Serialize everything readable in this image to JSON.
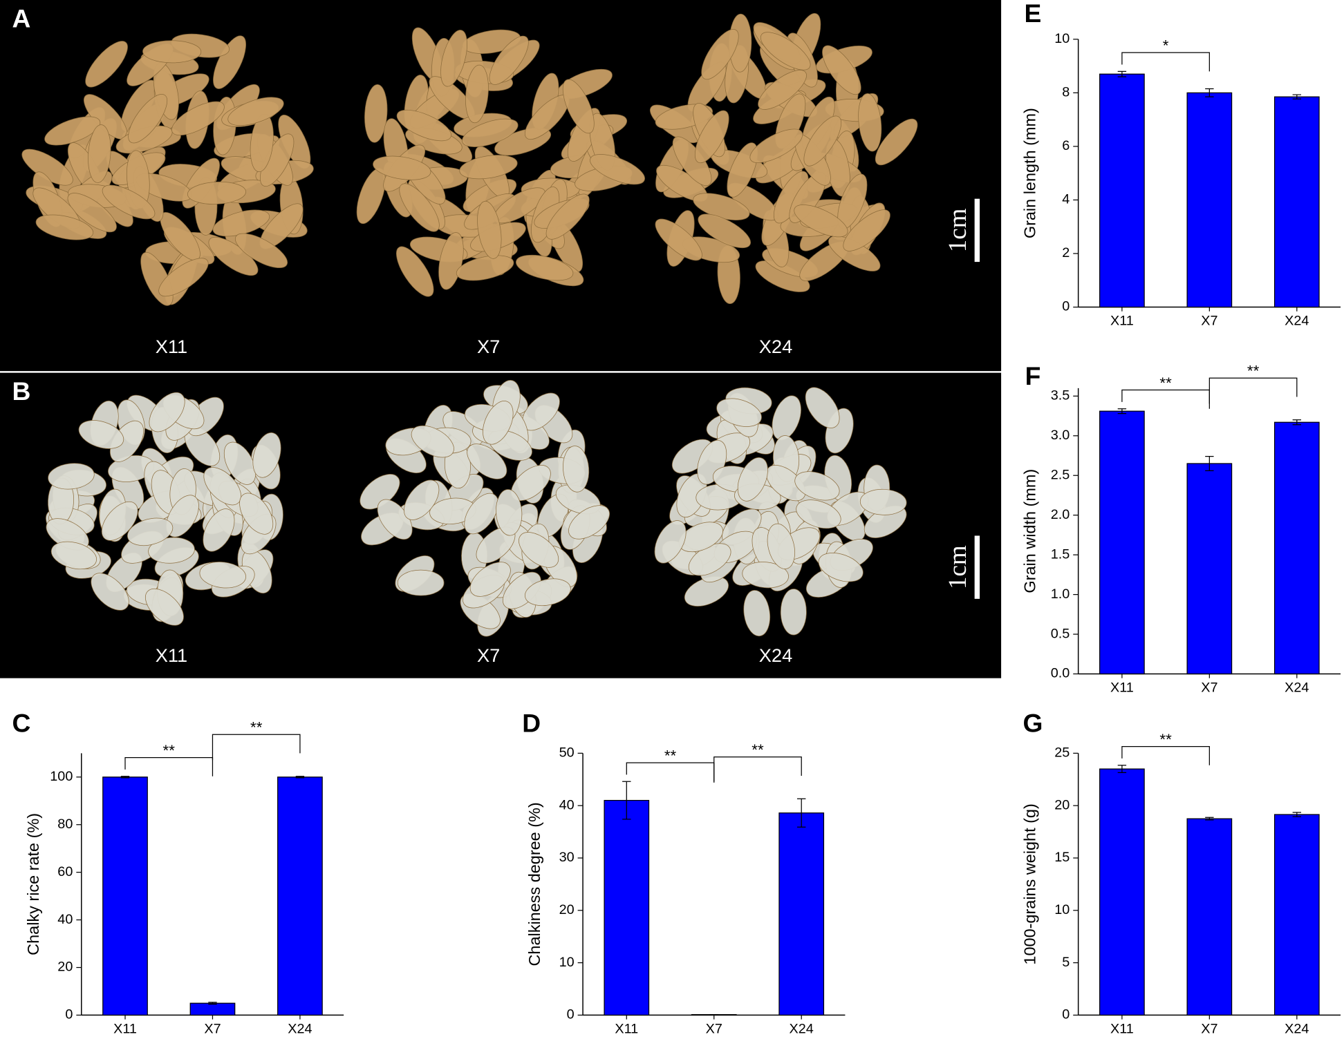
{
  "photos": [
    {
      "panel": "A",
      "samples": [
        "X11",
        "X7",
        "X24"
      ],
      "scale_bar": "1cm"
    },
    {
      "panel": "B",
      "samples": [
        "X11",
        "X7",
        "X24"
      ],
      "scale_bar": "1cm"
    }
  ],
  "chart_data": [
    {
      "type": "bar",
      "panel": "C",
      "y_label": "Chalky rice rate (%)",
      "categories": [
        "X11",
        "X7",
        "X24"
      ],
      "values": [
        100,
        5,
        100
      ],
      "errors": [
        0.3,
        0.4,
        0.3
      ],
      "color": "#0000ff",
      "ylim": [
        0,
        110
      ],
      "yticks": [
        0,
        20,
        40,
        60,
        80,
        100
      ],
      "annotations": [
        {
          "between": [
            "X11",
            "X7"
          ],
          "label": "**"
        },
        {
          "between": [
            "X7",
            "X24"
          ],
          "label": "**"
        }
      ]
    },
    {
      "type": "bar",
      "panel": "D",
      "y_label": "Chalkiness degree (%)",
      "categories": [
        "X11",
        "X7",
        "X24"
      ],
      "values": [
        41,
        0.1,
        38.6
      ],
      "errors": [
        3.6,
        0,
        2.7
      ],
      "color": "#0000ff",
      "ylim": [
        0,
        50
      ],
      "yticks": [
        0,
        10,
        20,
        30,
        40,
        50
      ],
      "annotations": [
        {
          "between": [
            "X11",
            "X7"
          ],
          "label": "**"
        },
        {
          "between": [
            "X7",
            "X24"
          ],
          "label": "**"
        }
      ]
    },
    {
      "type": "bar",
      "panel": "E",
      "y_label": "Grain length (mm)",
      "categories": [
        "X11",
        "X7",
        "X24"
      ],
      "values": [
        8.7,
        8.0,
        7.85
      ],
      "errors": [
        0.1,
        0.15,
        0.08
      ],
      "color": "#0000ff",
      "ylim": [
        0,
        10
      ],
      "yticks": [
        0,
        2,
        4,
        6,
        8,
        10
      ],
      "annotations": [
        {
          "between": [
            "X11",
            "X7"
          ],
          "label": "*"
        }
      ]
    },
    {
      "type": "bar",
      "panel": "F",
      "y_label": "Grain width (mm)",
      "categories": [
        "X11",
        "X7",
        "X24"
      ],
      "values": [
        3.31,
        2.65,
        3.17
      ],
      "errors": [
        0.03,
        0.09,
        0.03
      ],
      "color": "#0000ff",
      "ylim": [
        0,
        3.6
      ],
      "yticks": [
        {
          "value": 0,
          "label": "0.0"
        },
        0.5,
        {
          "value": 1,
          "label": "1.0"
        },
        1.5,
        {
          "value": 2,
          "label": "2.0"
        },
        2.5,
        {
          "value": 3,
          "label": "3.0"
        },
        3.5
      ],
      "annotations": [
        {
          "between": [
            "X11",
            "X7"
          ],
          "label": "**"
        },
        {
          "between": [
            "X7",
            "X24"
          ],
          "label": "**"
        }
      ]
    },
    {
      "type": "bar",
      "panel": "G",
      "y_label": "1000-grains weight (g)",
      "categories": [
        "X11",
        "X7",
        "X24"
      ],
      "values": [
        23.5,
        18.75,
        19.15
      ],
      "errors": [
        0.35,
        0.12,
        0.2
      ],
      "color": "#0000ff",
      "ylim": [
        0,
        25
      ],
      "yticks": [
        0,
        5,
        10,
        15,
        20,
        25
      ],
      "annotations": [
        {
          "between": [
            "X11",
            "X7"
          ],
          "label": "**"
        }
      ]
    }
  ]
}
